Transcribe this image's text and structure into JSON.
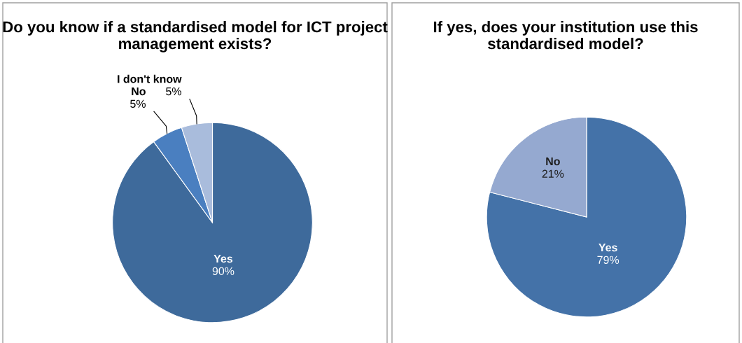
{
  "chart_data": [
    {
      "type": "pie",
      "title": "Do you know if a standardised model for ICT project management exists?",
      "categories": [
        "Yes",
        "No",
        "I don't know"
      ],
      "values": [
        90,
        5,
        5
      ],
      "value_labels": [
        "90%",
        "5%",
        "5%"
      ],
      "colors": [
        "#3e6a9b",
        "#4a7fc0",
        "#a9bcdc"
      ],
      "legend": false
    },
    {
      "type": "pie",
      "title": "If yes, does your institution use this standardised model?",
      "categories": [
        "Yes",
        "No"
      ],
      "values": [
        79,
        21
      ],
      "value_labels": [
        "79%",
        "21%"
      ],
      "colors": [
        "#4472a8",
        "#95a9d0"
      ],
      "legend": false
    }
  ]
}
